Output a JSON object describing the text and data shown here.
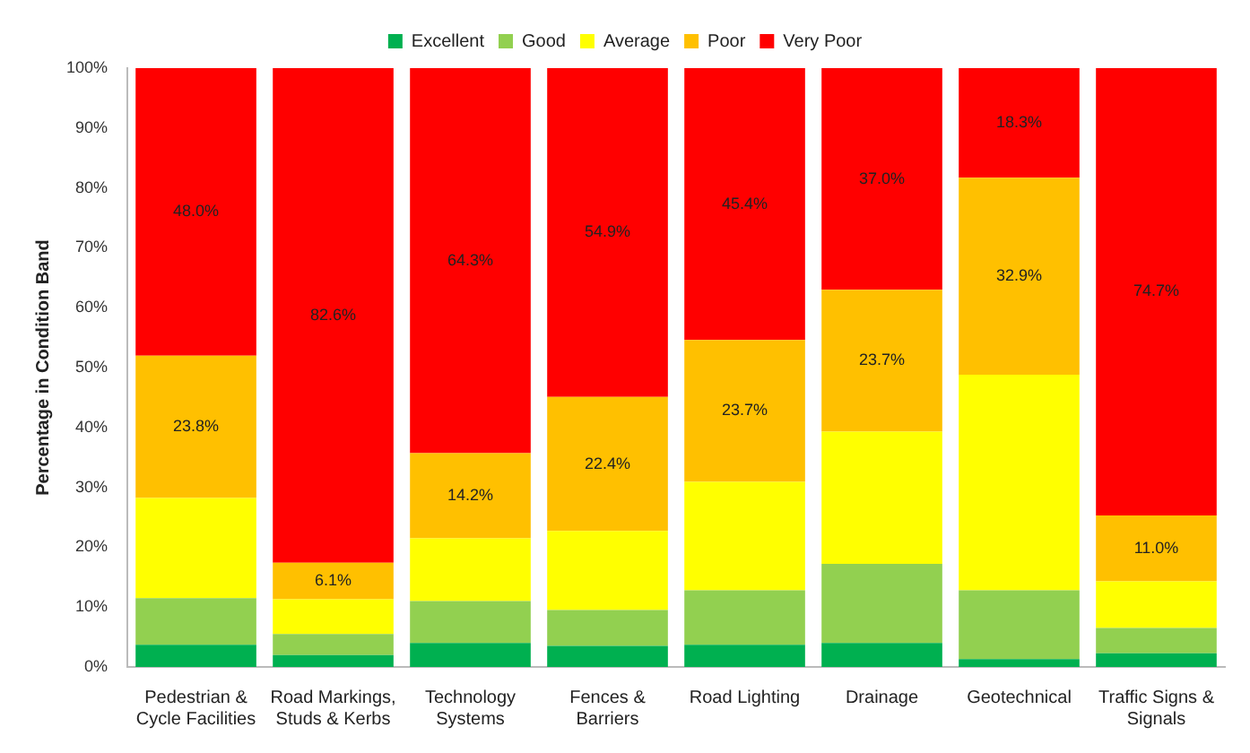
{
  "chart_data": {
    "type": "bar",
    "stacked": true,
    "ylabel": "Percentage in Condition Band",
    "categories": [
      "Pedestrian & Cycle Facilities",
      "Road Markings, Studs & Kerbs",
      "Technology Systems",
      "Fences & Barriers",
      "Road Lighting",
      "Drainage",
      "Geotechnical",
      "Traffic Signs & Signals"
    ],
    "series": [
      {
        "name": "Excellent",
        "color": "#00b050",
        "values": [
          3.7,
          2.0,
          4.0,
          3.5,
          3.7,
          4.0,
          1.3,
          2.3
        ]
      },
      {
        "name": "Good",
        "color": "#92d050",
        "values": [
          7.8,
          3.5,
          7.0,
          6.0,
          9.1,
          13.2,
          11.5,
          4.2
        ]
      },
      {
        "name": "Average",
        "color": "#ffff00",
        "values": [
          16.7,
          5.8,
          10.5,
          13.2,
          18.1,
          22.1,
          36.0,
          7.8
        ]
      },
      {
        "name": "Poor",
        "color": "#ffc000",
        "values": [
          23.8,
          6.1,
          14.2,
          22.4,
          23.7,
          23.7,
          32.9,
          11.0
        ],
        "value_labels": [
          "23.8%",
          "6.1%",
          "14.2%",
          "22.4%",
          "23.7%",
          "23.7%",
          "32.9%",
          "11.0%"
        ]
      },
      {
        "name": "Very Poor",
        "color": "#ff0000",
        "values": [
          48.0,
          82.6,
          64.3,
          54.9,
          45.4,
          37.0,
          18.3,
          74.7
        ],
        "value_labels": [
          "48.0%",
          "82.6%",
          "64.3%",
          "54.9%",
          "45.4%",
          "37.0%",
          "18.3%",
          "74.7%"
        ]
      }
    ],
    "ylim": [
      0,
      100
    ],
    "yticks": [
      {
        "value": 0,
        "label": "0%"
      },
      {
        "value": 10,
        "label": "10%"
      },
      {
        "value": 20,
        "label": "20%"
      },
      {
        "value": 30,
        "label": "30%"
      },
      {
        "value": 40,
        "label": "40%"
      },
      {
        "value": 50,
        "label": "50%"
      },
      {
        "value": 60,
        "label": "60%"
      },
      {
        "value": 70,
        "label": "70%"
      },
      {
        "value": 80,
        "label": "80%"
      },
      {
        "value": 90,
        "label": "90%"
      },
      {
        "value": 100,
        "label": "100%"
      }
    ],
    "grid": false,
    "legend": "top"
  }
}
